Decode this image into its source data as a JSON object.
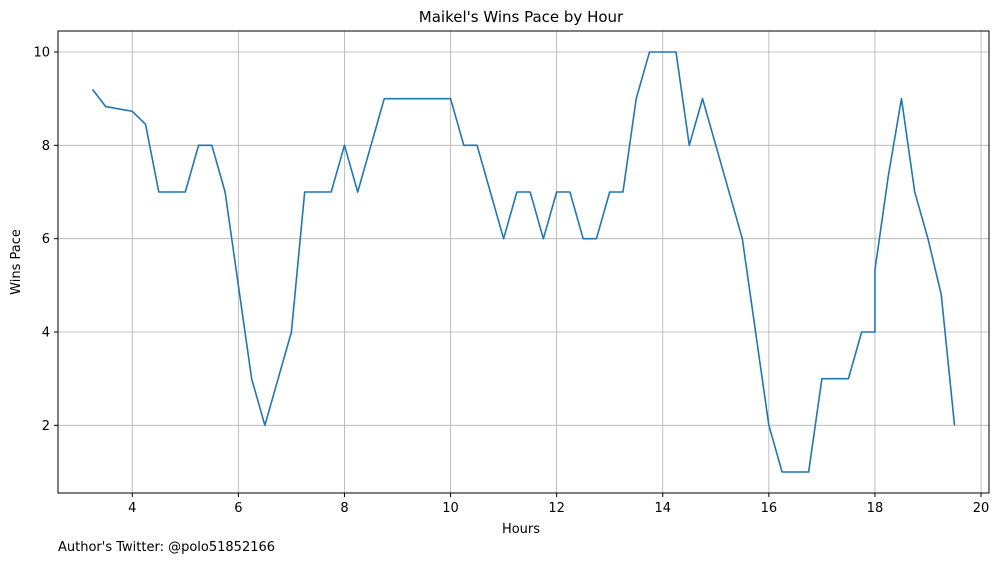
{
  "chart_data": {
    "type": "line",
    "title": "Maikel's Wins Pace by Hour",
    "xlabel": "Hours",
    "ylabel": "Wins Pace",
    "xlim": [
      2.6,
      20.15
    ],
    "ylim": [
      0.55,
      10.45
    ],
    "grid": true,
    "x_ticks": [
      4,
      6,
      8,
      10,
      12,
      14,
      16,
      18,
      20
    ],
    "y_ticks": [
      2,
      4,
      6,
      8,
      10
    ],
    "color": "#1f77b4",
    "series": [
      {
        "x": [
          3.25,
          3.5,
          4.0,
          4.25,
          4.5,
          5.0,
          5.25,
          5.5,
          5.75,
          6.0,
          6.25,
          6.5,
          7.0,
          7.25,
          7.5,
          7.75,
          8.0,
          8.25,
          8.5,
          8.75,
          9.0,
          9.5,
          10.0,
          10.25,
          10.5,
          10.75,
          11.0,
          11.25,
          11.5,
          11.75,
          12.0,
          12.25,
          12.5,
          12.75,
          13.0,
          13.25,
          13.5,
          13.75,
          14.0,
          14.25,
          14.5,
          14.75,
          15.0,
          15.5,
          15.75,
          16.0,
          16.25,
          16.5,
          16.75,
          17.0,
          17.25,
          17.5,
          17.75,
          18.0,
          18.0,
          18.25,
          18.5,
          18.75,
          19.0,
          19.25,
          19.5
        ],
        "y": [
          9.2,
          8.83,
          8.73,
          8.45,
          7.0,
          7.0,
          8.0,
          8.0,
          7.0,
          5.0,
          3.0,
          2.0,
          4.0,
          7.0,
          7.0,
          7.0,
          8.0,
          7.0,
          8.0,
          9.0,
          9.0,
          9.0,
          9.0,
          8.0,
          8.0,
          7.0,
          6.0,
          7.0,
          7.0,
          6.0,
          7.0,
          7.0,
          6.0,
          6.0,
          7.0,
          7.0,
          9.0,
          10.0,
          10.0,
          10.0,
          8.0,
          9.0,
          8.0,
          6.0,
          4.0,
          2.0,
          1.0,
          1.0,
          1.0,
          3.0,
          3.0,
          3.0,
          4.0,
          4.0,
          5.33,
          7.33,
          9.0,
          7.0,
          6.0,
          4.8,
          2.0
        ]
      }
    ]
  },
  "footer": {
    "text": "Author's Twitter: @polo51852166"
  }
}
